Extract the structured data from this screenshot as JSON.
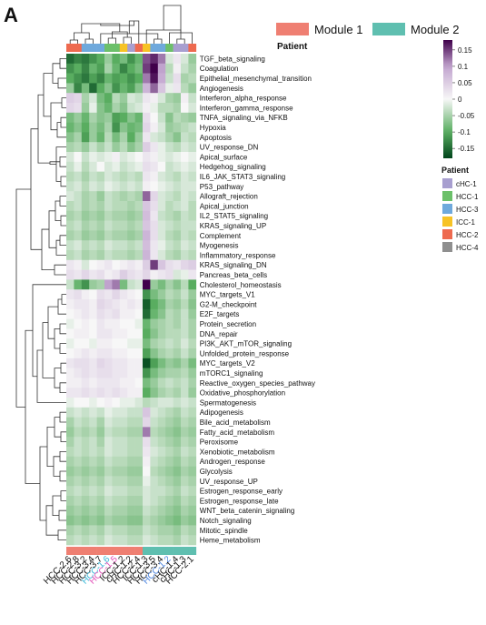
{
  "panel_label": "A",
  "modules": {
    "items": [
      {
        "label": "Module 1",
        "color": "#ef7f72"
      },
      {
        "label": "Module 2",
        "color": "#5fbfb0"
      }
    ]
  },
  "patient_header": "Patient",
  "colorbar": {
    "ticks": [
      "0.15",
      "0.1",
      "0.05",
      "0",
      "-0.05",
      "-0.1",
      "-0.15"
    ],
    "range": [
      -0.18,
      0.18
    ]
  },
  "patient_legend": {
    "title": "Patient",
    "items": [
      {
        "label": "cHC-1",
        "color": "#a89fd0"
      },
      {
        "label": "HCC-1",
        "color": "#6cc06a"
      },
      {
        "label": "HCC-3",
        "color": "#6fa9dc"
      },
      {
        "label": "ICC-1",
        "color": "#f7c325"
      },
      {
        "label": "HCC-2",
        "color": "#ee6a4f"
      },
      {
        "label": "HCC-4",
        "color": "#8f8f8f"
      }
    ]
  },
  "chart_data": {
    "type": "heatmap",
    "title": "",
    "xlabel": "",
    "ylabel": "",
    "rows": [
      "TGF_beta_signaling",
      "Coagulation",
      "Epithelial_mesenchymal_transition",
      "Angiogenesis",
      "Interferon_alpha_response",
      "Interferon_gamma_response",
      "TNFA_signaling_via_NFKB",
      "Hypoxia",
      "Apoptosis",
      "UV_response_DN",
      "Apical_surface",
      "Hedgehog_signaling",
      "IL6_JAK_STAT3_signaling",
      "P53_pathway",
      "Allograft_rejection",
      "Apical_junction",
      "IL2_STAT5_signaling",
      "KRAS_signaling_UP",
      "Complement",
      "Myogenesis",
      "Inflammatory_response",
      "KRAS_signaling_DN",
      "Pancreas_beta_cells",
      "Cholesterol_homeostasis",
      "MYC_targets_V1",
      "G2-M_checkpoint",
      "E2F_targets",
      "Protein_secretion",
      "DNA_repair",
      "PI3K_AKT_mTOR_signaling",
      "Unfolded_protein_response",
      "MYC_targets_V2",
      "mTORC1_signaling",
      "Reactive_oxygen_species_pathway",
      "Oxidative_phosphorylation",
      "Spermatogenesis",
      "Adipogenesis",
      "Bile_acid_metabolism",
      "Fatty_acid_metabolism",
      "Peroxisome",
      "Xenobiotic_metabolism",
      "Androgen_response",
      "Glycolysis",
      "UV_response_UP",
      "Estrogen_response_early",
      "Estrogen_response_late",
      "WNT_beta_catenin_signaling",
      "Notch_signaling",
      "Mitotic_spindle",
      "Heme_metabolism"
    ],
    "columns": [
      "HCC-2.6",
      "HCC-2.8",
      "HCC-3.2",
      "HCC-3.4",
      "HCC-3.7",
      "HCC-1.6",
      "HCC-1.5",
      "ICC-1.2",
      "cHC-1.2",
      "HCC-2.4",
      "ICC-1.3",
      "HCC-3.5",
      "HCC-3.4",
      "HCC-1.2",
      "cHC-1.4",
      "cHC-1.3",
      "HCC-2.1"
    ],
    "column_label_colors": [
      "#111111",
      "#111111",
      "#111111",
      "#111111",
      "#111111",
      "#3ab7d8",
      "#e251b8",
      "#111111",
      "#111111",
      "#111111",
      "#111111",
      "#111111",
      "#111111",
      "#4e86e0",
      "#111111",
      "#111111",
      "#111111"
    ],
    "column_patient": [
      "HCC-2",
      "HCC-2",
      "HCC-3",
      "HCC-3",
      "HCC-3",
      "HCC-1",
      "HCC-1",
      "ICC-1",
      "cHC-1",
      "HCC-2",
      "ICC-1",
      "HCC-3",
      "HCC-3",
      "HCC-1",
      "cHC-1",
      "cHC-1",
      "HCC-2"
    ],
    "column_module": [
      "Module 1",
      "Module 1",
      "Module 1",
      "Module 1",
      "Module 1",
      "Module 1",
      "Module 1",
      "Module 1",
      "Module 1",
      "Module 1",
      "Module 2",
      "Module 2",
      "Module 2",
      "Module 2",
      "Module 2",
      "Module 2",
      "Module 2"
    ],
    "values": [
      [
        -0.15,
        -0.13,
        -0.14,
        -0.12,
        -0.1,
        -0.06,
        -0.1,
        -0.08,
        -0.12,
        -0.09,
        0.14,
        0.16,
        0.12,
        -0.02,
        0.02,
        -0.02,
        -0.06
      ],
      [
        -0.12,
        -0.1,
        -0.13,
        -0.09,
        -0.11,
        -0.05,
        -0.09,
        -0.13,
        -0.1,
        -0.08,
        0.15,
        0.18,
        0.1,
        -0.04,
        0.01,
        -0.03,
        -0.05
      ],
      [
        -0.1,
        -0.12,
        -0.14,
        -0.11,
        -0.13,
        -0.09,
        -0.11,
        -0.1,
        -0.12,
        -0.1,
        0.12,
        0.17,
        0.09,
        -0.03,
        0.03,
        -0.05,
        -0.04
      ],
      [
        -0.06,
        -0.13,
        -0.08,
        -0.15,
        -0.1,
        -0.07,
        -0.12,
        -0.09,
        -0.11,
        -0.07,
        0.08,
        0.13,
        0.06,
        -0.01,
        0.02,
        -0.04,
        -0.06
      ],
      [
        0.05,
        0.04,
        -0.05,
        -0.02,
        -0.08,
        -0.1,
        -0.04,
        -0.06,
        -0.02,
        -0.03,
        0.02,
        0.01,
        -0.02,
        -0.05,
        -0.06,
        0.01,
        -0.03
      ],
      [
        0.04,
        0.03,
        -0.06,
        -0.01,
        -0.07,
        -0.09,
        -0.05,
        -0.07,
        -0.03,
        -0.02,
        0.01,
        -0.01,
        -0.04,
        -0.04,
        -0.05,
        0.0,
        -0.02
      ],
      [
        -0.08,
        -0.06,
        -0.09,
        -0.05,
        -0.07,
        -0.06,
        -0.11,
        -0.1,
        -0.07,
        -0.09,
        0.03,
        0.0,
        -0.03,
        -0.07,
        -0.04,
        -0.05,
        -0.06
      ],
      [
        -0.09,
        -0.07,
        -0.1,
        -0.06,
        -0.08,
        -0.05,
        -0.12,
        -0.07,
        -0.09,
        -0.08,
        0.04,
        0.01,
        -0.02,
        -0.06,
        -0.05,
        -0.04,
        -0.03
      ],
      [
        -0.07,
        -0.05,
        -0.11,
        -0.06,
        -0.09,
        -0.04,
        -0.08,
        -0.05,
        -0.1,
        -0.06,
        0.02,
        -0.02,
        -0.03,
        -0.05,
        -0.07,
        -0.03,
        -0.04
      ],
      [
        -0.05,
        -0.04,
        -0.06,
        -0.03,
        -0.05,
        -0.03,
        -0.06,
        -0.04,
        -0.07,
        -0.05,
        0.05,
        0.02,
        -0.01,
        -0.03,
        -0.04,
        -0.02,
        -0.03
      ],
      [
        -0.02,
        0.0,
        -0.03,
        -0.01,
        -0.02,
        -0.01,
        0.01,
        -0.02,
        -0.01,
        0.0,
        0.02,
        0.01,
        -0.01,
        -0.02,
        -0.01,
        0.0,
        -0.01
      ],
      [
        -0.03,
        -0.01,
        -0.04,
        -0.02,
        0.0,
        -0.02,
        -0.01,
        -0.03,
        -0.02,
        -0.01,
        0.03,
        0.02,
        0.0,
        -0.03,
        -0.02,
        -0.01,
        -0.02
      ],
      [
        -0.04,
        -0.03,
        -0.05,
        -0.03,
        -0.04,
        -0.02,
        -0.03,
        -0.04,
        -0.03,
        -0.04,
        0.02,
        0.01,
        -0.02,
        -0.03,
        -0.04,
        -0.02,
        -0.03
      ],
      [
        -0.03,
        -0.02,
        -0.04,
        -0.02,
        -0.03,
        -0.01,
        -0.02,
        -0.03,
        -0.02,
        -0.03,
        0.01,
        0.0,
        -0.01,
        -0.02,
        -0.03,
        -0.02,
        -0.02
      ],
      [
        -0.02,
        -0.03,
        -0.05,
        -0.04,
        -0.06,
        -0.03,
        -0.04,
        -0.05,
        -0.04,
        -0.05,
        0.13,
        0.04,
        -0.02,
        -0.03,
        -0.04,
        -0.02,
        -0.03
      ],
      [
        -0.04,
        -0.03,
        -0.05,
        -0.04,
        -0.05,
        -0.03,
        -0.04,
        -0.04,
        -0.05,
        -0.04,
        0.06,
        0.03,
        -0.02,
        -0.04,
        -0.03,
        -0.02,
        -0.04
      ],
      [
        -0.05,
        -0.04,
        -0.06,
        -0.05,
        -0.06,
        -0.04,
        -0.05,
        -0.05,
        -0.06,
        -0.05,
        0.07,
        0.02,
        -0.03,
        -0.04,
        -0.05,
        -0.03,
        -0.04
      ],
      [
        -0.04,
        -0.03,
        -0.05,
        -0.04,
        -0.05,
        -0.03,
        -0.04,
        -0.04,
        -0.05,
        -0.04,
        0.06,
        0.03,
        -0.02,
        -0.03,
        -0.04,
        -0.03,
        -0.03
      ],
      [
        -0.05,
        -0.04,
        -0.06,
        -0.05,
        -0.06,
        -0.04,
        -0.05,
        -0.05,
        -0.06,
        -0.05,
        0.08,
        0.03,
        -0.02,
        -0.04,
        -0.05,
        -0.03,
        -0.04
      ],
      [
        -0.03,
        -0.02,
        -0.04,
        -0.03,
        -0.04,
        -0.02,
        -0.03,
        -0.03,
        -0.04,
        -0.03,
        0.07,
        0.02,
        -0.01,
        -0.03,
        -0.04,
        -0.02,
        -0.03
      ],
      [
        -0.04,
        -0.03,
        -0.05,
        -0.04,
        -0.05,
        -0.03,
        -0.04,
        -0.04,
        -0.05,
        -0.04,
        0.08,
        0.02,
        -0.02,
        -0.04,
        -0.05,
        -0.03,
        -0.04
      ],
      [
        0.02,
        0.01,
        -0.02,
        0.0,
        0.01,
        0.02,
        0.0,
        0.01,
        0.02,
        0.01,
        0.05,
        0.15,
        0.06,
        0.03,
        0.02,
        0.04,
        0.05
      ],
      [
        0.03,
        0.02,
        0.04,
        0.02,
        0.03,
        0.01,
        0.02,
        0.05,
        0.03,
        0.02,
        0.04,
        0.01,
        0.02,
        0.03,
        -0.02,
        -0.01,
        0.02
      ],
      [
        -0.03,
        -0.09,
        -0.12,
        -0.06,
        -0.05,
        0.1,
        0.12,
        -0.08,
        -0.03,
        -0.02,
        0.18,
        -0.06,
        -0.08,
        -0.05,
        -0.07,
        -0.04,
        -0.1
      ],
      [
        0.02,
        0.03,
        0.01,
        0.0,
        0.03,
        0.02,
        0.04,
        0.02,
        0.01,
        0.0,
        -0.12,
        -0.08,
        -0.06,
        -0.04,
        -0.05,
        -0.03,
        -0.06
      ],
      [
        0.01,
        0.02,
        0.02,
        0.01,
        0.04,
        0.03,
        0.02,
        0.01,
        0.02,
        0.01,
        -0.16,
        -0.1,
        -0.08,
        -0.05,
        -0.06,
        -0.04,
        -0.07
      ],
      [
        0.0,
        0.01,
        0.02,
        0.01,
        0.03,
        0.02,
        0.03,
        0.01,
        0.01,
        0.0,
        -0.15,
        -0.09,
        -0.07,
        -0.04,
        -0.05,
        -0.03,
        -0.06
      ],
      [
        -0.01,
        0.0,
        0.01,
        0.0,
        0.02,
        0.01,
        0.01,
        0.0,
        0.0,
        -0.01,
        -0.09,
        -0.06,
        -0.05,
        -0.04,
        -0.05,
        -0.03,
        -0.05
      ],
      [
        0.0,
        0.01,
        0.01,
        0.0,
        0.02,
        0.02,
        0.01,
        0.01,
        0.0,
        0.0,
        -0.1,
        -0.07,
        -0.05,
        -0.04,
        -0.04,
        -0.03,
        -0.05
      ],
      [
        -0.01,
        0.0,
        0.0,
        -0.01,
        0.01,
        0.01,
        0.0,
        0.0,
        -0.01,
        -0.01,
        -0.08,
        -0.05,
        -0.04,
        -0.03,
        -0.04,
        -0.02,
        -0.04
      ],
      [
        0.0,
        0.01,
        0.02,
        0.01,
        0.02,
        0.02,
        0.01,
        0.01,
        0.0,
        0.0,
        -0.11,
        -0.07,
        -0.05,
        -0.04,
        -0.05,
        -0.03,
        -0.05
      ],
      [
        0.02,
        0.03,
        0.03,
        0.02,
        0.04,
        0.03,
        0.02,
        0.02,
        0.01,
        0.01,
        -0.17,
        -0.11,
        -0.08,
        -0.06,
        -0.07,
        -0.05,
        -0.08
      ],
      [
        0.01,
        0.02,
        0.03,
        0.02,
        0.03,
        0.03,
        0.02,
        0.02,
        0.01,
        0.01,
        -0.12,
        -0.08,
        -0.06,
        -0.05,
        -0.05,
        -0.04,
        -0.06
      ],
      [
        0.01,
        0.01,
        0.02,
        0.01,
        0.02,
        0.02,
        0.02,
        0.01,
        0.01,
        0.0,
        -0.08,
        -0.06,
        -0.04,
        -0.03,
        -0.04,
        -0.03,
        -0.05
      ],
      [
        0.02,
        0.02,
        0.03,
        0.02,
        0.03,
        0.02,
        0.03,
        0.02,
        0.01,
        0.01,
        -0.1,
        -0.07,
        -0.05,
        -0.04,
        -0.05,
        -0.03,
        -0.06
      ],
      [
        -0.01,
        0.0,
        0.0,
        -0.01,
        0.0,
        0.01,
        0.0,
        -0.01,
        -0.01,
        -0.02,
        -0.04,
        -0.03,
        -0.02,
        -0.02,
        -0.03,
        -0.02,
        -0.03
      ],
      [
        -0.03,
        -0.02,
        -0.03,
        -0.02,
        -0.03,
        -0.01,
        -0.02,
        -0.02,
        -0.03,
        -0.03,
        0.06,
        -0.02,
        -0.03,
        -0.04,
        -0.05,
        -0.03,
        -0.04
      ],
      [
        -0.05,
        -0.03,
        -0.04,
        -0.03,
        -0.05,
        -0.02,
        -0.03,
        -0.03,
        -0.04,
        -0.04,
        0.04,
        -0.03,
        -0.04,
        -0.05,
        -0.06,
        -0.04,
        -0.05
      ],
      [
        -0.06,
        -0.04,
        -0.05,
        -0.04,
        -0.06,
        -0.03,
        -0.04,
        -0.04,
        -0.05,
        -0.05,
        0.12,
        -0.04,
        -0.05,
        -0.06,
        -0.07,
        -0.05,
        -0.06
      ],
      [
        -0.05,
        -0.03,
        -0.04,
        -0.03,
        -0.05,
        -0.02,
        -0.03,
        -0.03,
        -0.04,
        -0.04,
        0.03,
        -0.03,
        -0.04,
        -0.05,
        -0.06,
        -0.04,
        -0.05
      ],
      [
        -0.04,
        -0.03,
        -0.04,
        -0.03,
        -0.04,
        -0.02,
        -0.03,
        -0.03,
        -0.04,
        -0.04,
        0.02,
        -0.02,
        -0.03,
        -0.04,
        -0.05,
        -0.03,
        -0.04
      ],
      [
        -0.05,
        -0.04,
        -0.05,
        -0.04,
        -0.05,
        -0.03,
        -0.04,
        -0.04,
        -0.05,
        -0.05,
        0.01,
        -0.03,
        -0.04,
        -0.05,
        -0.06,
        -0.04,
        -0.05
      ],
      [
        -0.06,
        -0.05,
        -0.06,
        -0.05,
        -0.06,
        -0.04,
        -0.05,
        -0.05,
        -0.06,
        -0.06,
        0.0,
        -0.04,
        -0.05,
        -0.06,
        -0.07,
        -0.05,
        -0.06
      ],
      [
        -0.05,
        -0.04,
        -0.05,
        -0.04,
        -0.05,
        -0.03,
        -0.04,
        -0.04,
        -0.05,
        -0.05,
        -0.01,
        -0.03,
        -0.04,
        -0.05,
        -0.06,
        -0.04,
        -0.05
      ],
      [
        -0.04,
        -0.03,
        -0.04,
        -0.03,
        -0.04,
        -0.02,
        -0.03,
        -0.03,
        -0.04,
        -0.04,
        -0.02,
        -0.03,
        -0.03,
        -0.04,
        -0.05,
        -0.03,
        -0.04
      ],
      [
        -0.05,
        -0.04,
        -0.05,
        -0.04,
        -0.05,
        -0.03,
        -0.04,
        -0.04,
        -0.05,
        -0.05,
        -0.02,
        -0.03,
        -0.04,
        -0.05,
        -0.06,
        -0.04,
        -0.05
      ],
      [
        -0.06,
        -0.05,
        -0.06,
        -0.05,
        -0.06,
        -0.04,
        -0.05,
        -0.05,
        -0.06,
        -0.06,
        -0.03,
        -0.04,
        -0.05,
        -0.06,
        -0.07,
        -0.05,
        -0.06
      ],
      [
        -0.07,
        -0.06,
        -0.07,
        -0.06,
        -0.07,
        -0.05,
        -0.06,
        -0.06,
        -0.07,
        -0.07,
        -0.04,
        -0.05,
        -0.06,
        -0.07,
        -0.08,
        -0.06,
        -0.07
      ],
      [
        -0.05,
        -0.04,
        -0.05,
        -0.04,
        -0.05,
        -0.03,
        -0.04,
        -0.04,
        -0.05,
        -0.05,
        -0.03,
        -0.04,
        -0.05,
        -0.05,
        -0.06,
        -0.04,
        -0.05
      ],
      [
        -0.04,
        -0.03,
        -0.04,
        -0.03,
        -0.04,
        -0.02,
        -0.03,
        -0.03,
        -0.04,
        -0.04,
        -0.02,
        -0.03,
        -0.04,
        -0.04,
        -0.05,
        -0.03,
        -0.04
      ]
    ]
  }
}
